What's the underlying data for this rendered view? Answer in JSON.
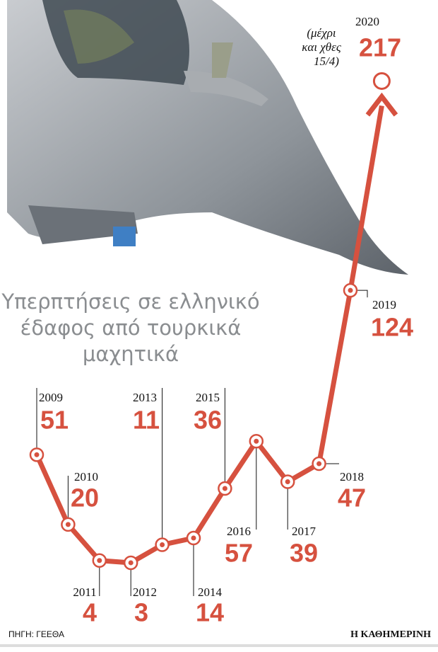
{
  "chart_data": {
    "type": "line",
    "title": [
      "Υπερπτήσεις σε ελληνικό",
      "έδαφος από τουρκικά",
      "μαχητικά"
    ],
    "annotation": [
      "(μέχρι",
      "και χθες",
      "15/4)"
    ],
    "categories": [
      "2009",
      "2010",
      "2011",
      "2012",
      "2013",
      "2014",
      "2015",
      "2016",
      "2017",
      "2018",
      "2019",
      "2020"
    ],
    "values": [
      51,
      20,
      4,
      3,
      11,
      14,
      36,
      57,
      39,
      47,
      124,
      217
    ],
    "color": "#d6513f",
    "source": "ΠΗΓΗ: ΓΕΕΘΑ",
    "publisher": "Η ΚΑΘΗΜΕΡΙΝΗ"
  }
}
